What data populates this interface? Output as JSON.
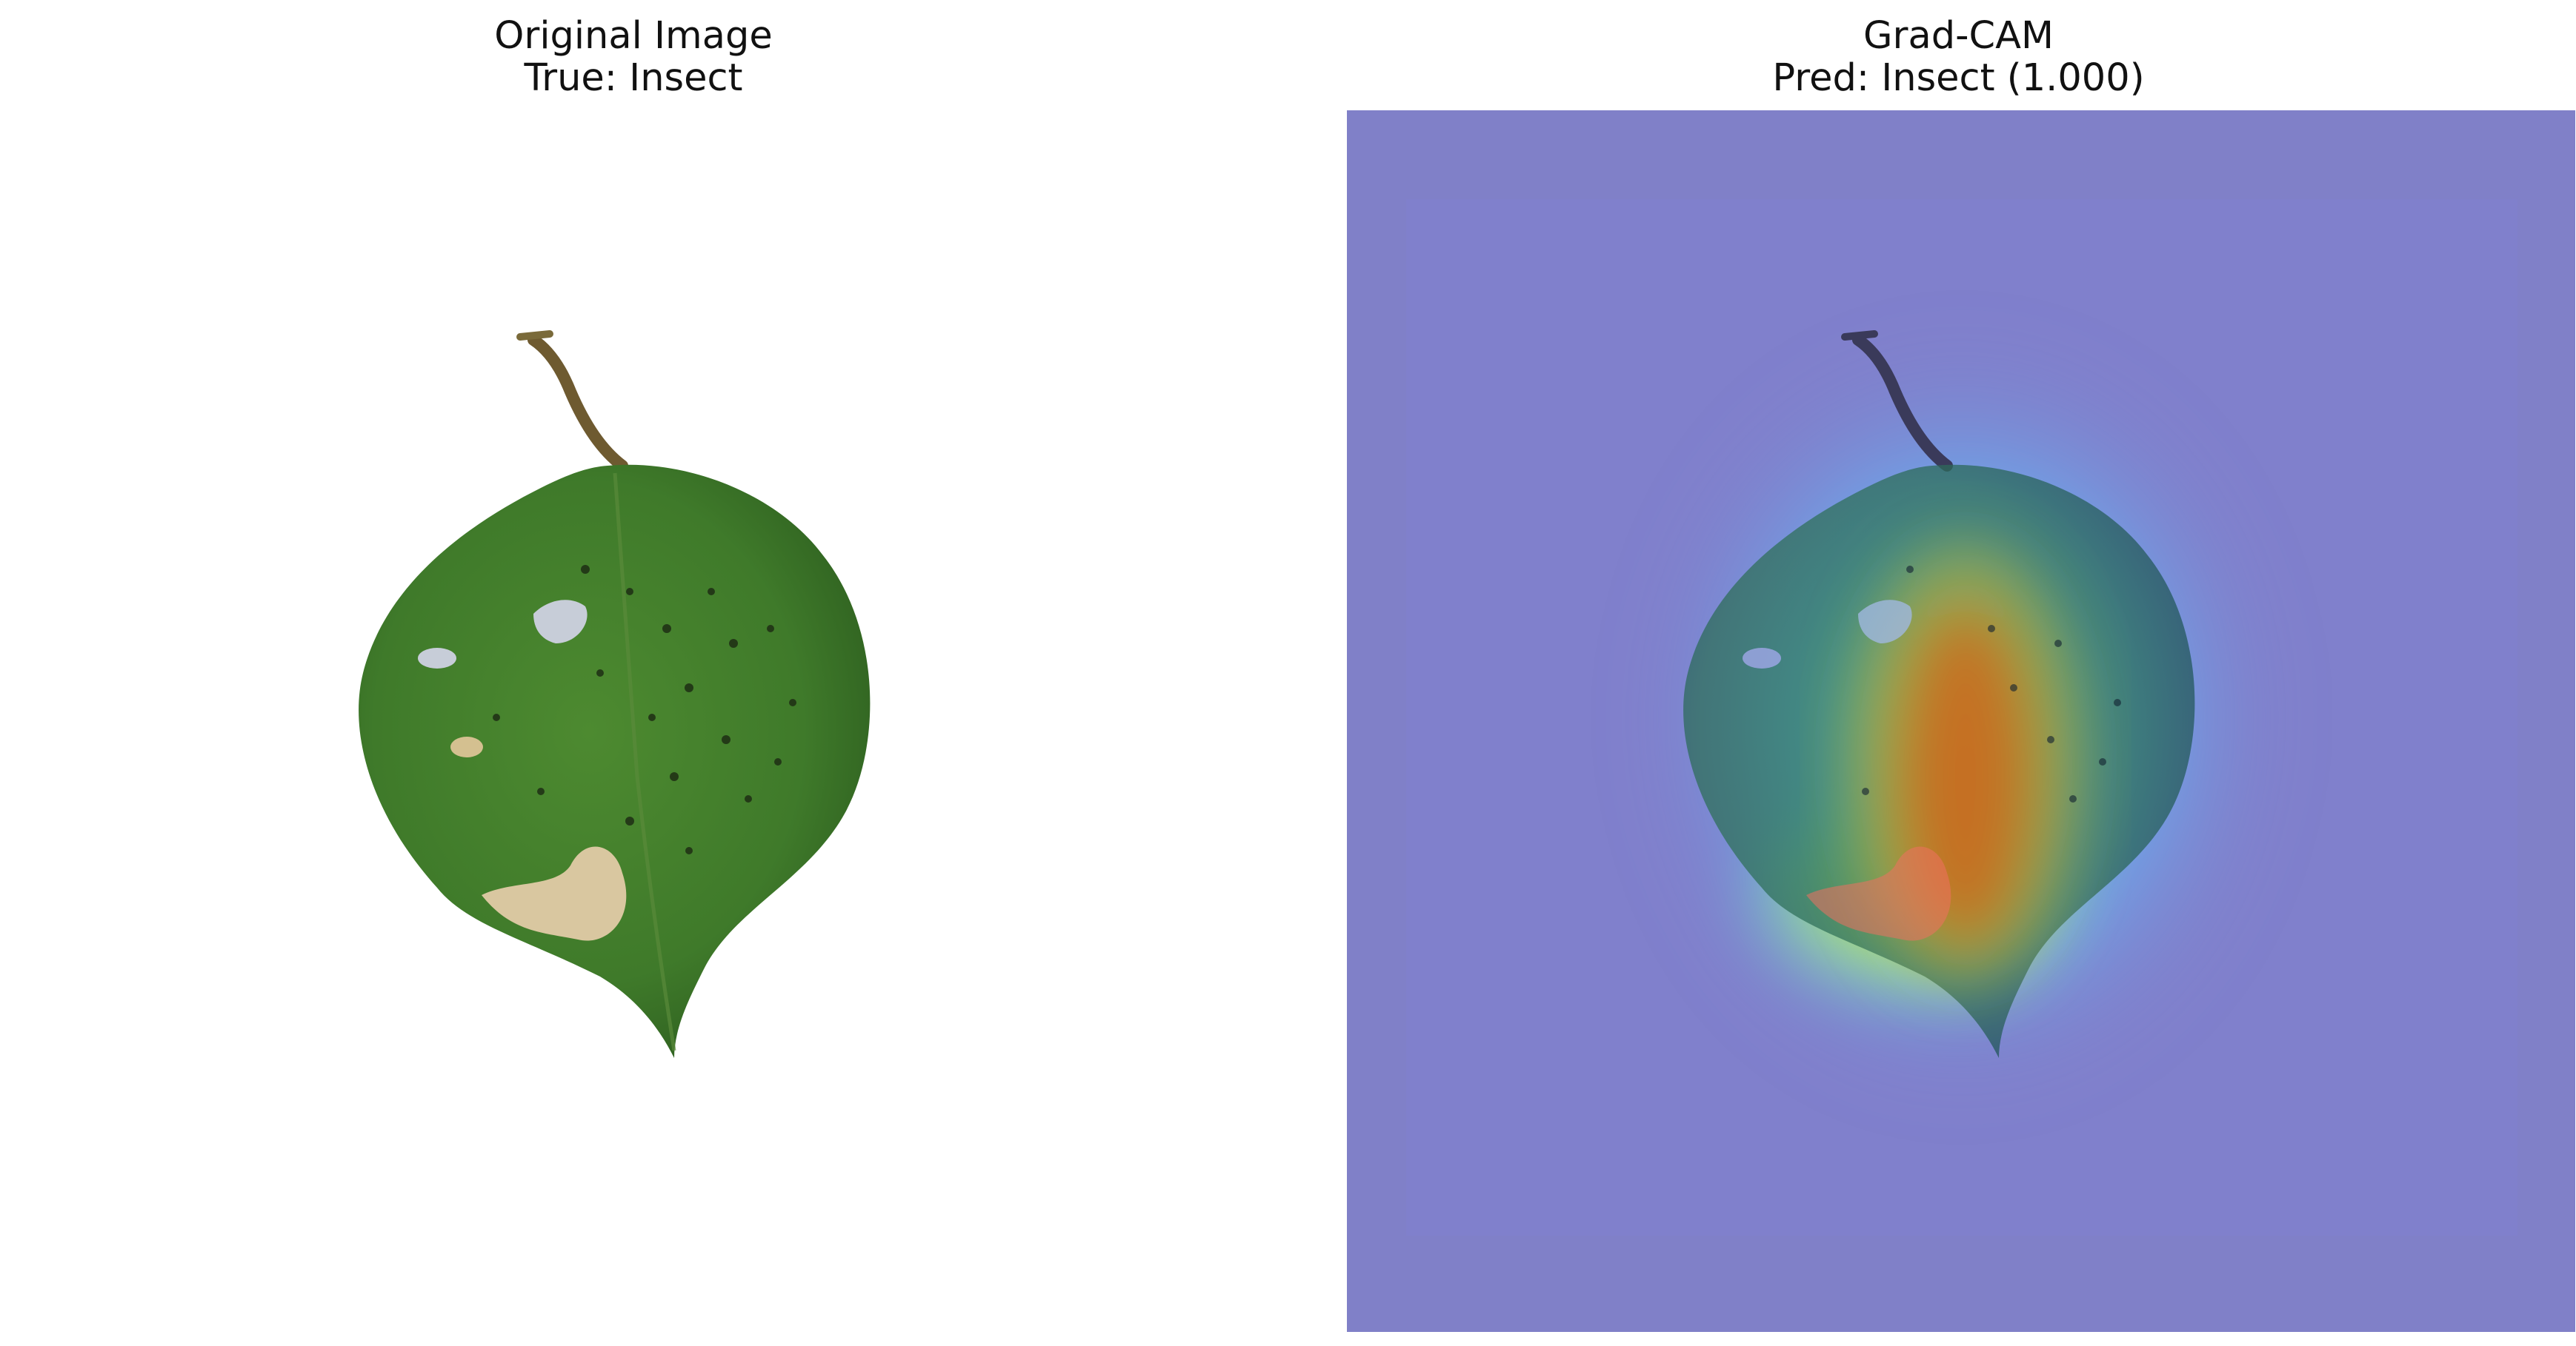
{
  "panels": {
    "original": {
      "title": "Original Image",
      "subtitle": "True: Insect"
    },
    "gradcam": {
      "title": "Grad-CAM",
      "subtitle": "Pred: Insect (1.000)"
    }
  },
  "colors": {
    "background": "#ffffff",
    "leaf_green": "#3f7a2a",
    "leaf_dark": "#2b5a1c",
    "stem_brown": "#7a6a3a",
    "lesion_tan": "#d9c7a0",
    "hole_blue": "#aab7d6",
    "overlay_blue": "#8080c8",
    "heat_red": "#b01010",
    "heat_yellow": "#ffe040",
    "heat_cyan": "#40ffff"
  },
  "icons": {
    "leaf": "leaf-photo",
    "heatmap": "gradcam-heatmap"
  }
}
